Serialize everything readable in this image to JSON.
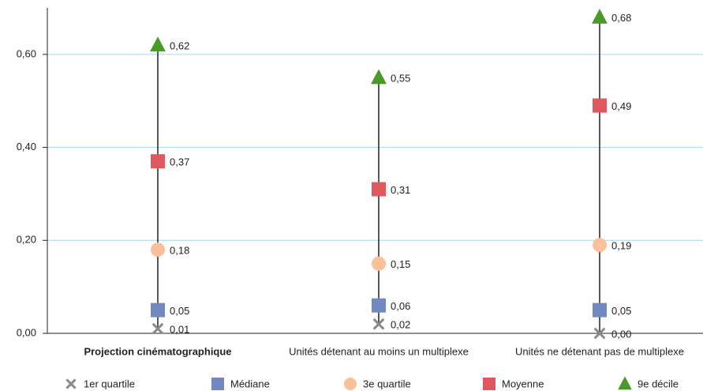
{
  "chart_data": {
    "type": "range-dot",
    "categories": [
      "Projection cinématographique",
      "Unités détenant au moins un multiplexe",
      "Unités ne détenant pas de multiplexe"
    ],
    "series": [
      {
        "name": "1er quartile",
        "marker": "x",
        "color": "#8a8a8a",
        "values": [
          0.01,
          0.02,
          0.0
        ],
        "value_labels": [
          "0,01",
          "0,02",
          "0,00"
        ]
      },
      {
        "name": "Médiane",
        "marker": "square",
        "color": "#7189bf",
        "values": [
          0.05,
          0.06,
          0.05
        ],
        "value_labels": [
          "0,05",
          "0,06",
          "0,05"
        ]
      },
      {
        "name": "3e quartile",
        "marker": "circle",
        "color": "#f9c09a",
        "values": [
          0.18,
          0.15,
          0.19
        ],
        "value_labels": [
          "0,18",
          "0,15",
          "0,19"
        ]
      },
      {
        "name": "Moyenne",
        "marker": "square",
        "color": "#e0585f",
        "values": [
          0.37,
          0.31,
          0.49
        ],
        "value_labels": [
          "0,37",
          "0,31",
          "0,49"
        ]
      },
      {
        "name": "9e décile",
        "marker": "triangle",
        "color": "#4a9a2a",
        "values": [
          0.62,
          0.55,
          0.68
        ],
        "value_labels": [
          "0,62",
          "0,55",
          "0,68"
        ]
      }
    ],
    "ylim": [
      0,
      0.7
    ],
    "yticks": [
      {
        "value": 0,
        "label": "0,00"
      },
      {
        "value": 0.2,
        "label": "0,20"
      },
      {
        "value": 0.4,
        "label": "0,40"
      },
      {
        "value": 0.6,
        "label": "0,60"
      }
    ],
    "grid": true
  }
}
